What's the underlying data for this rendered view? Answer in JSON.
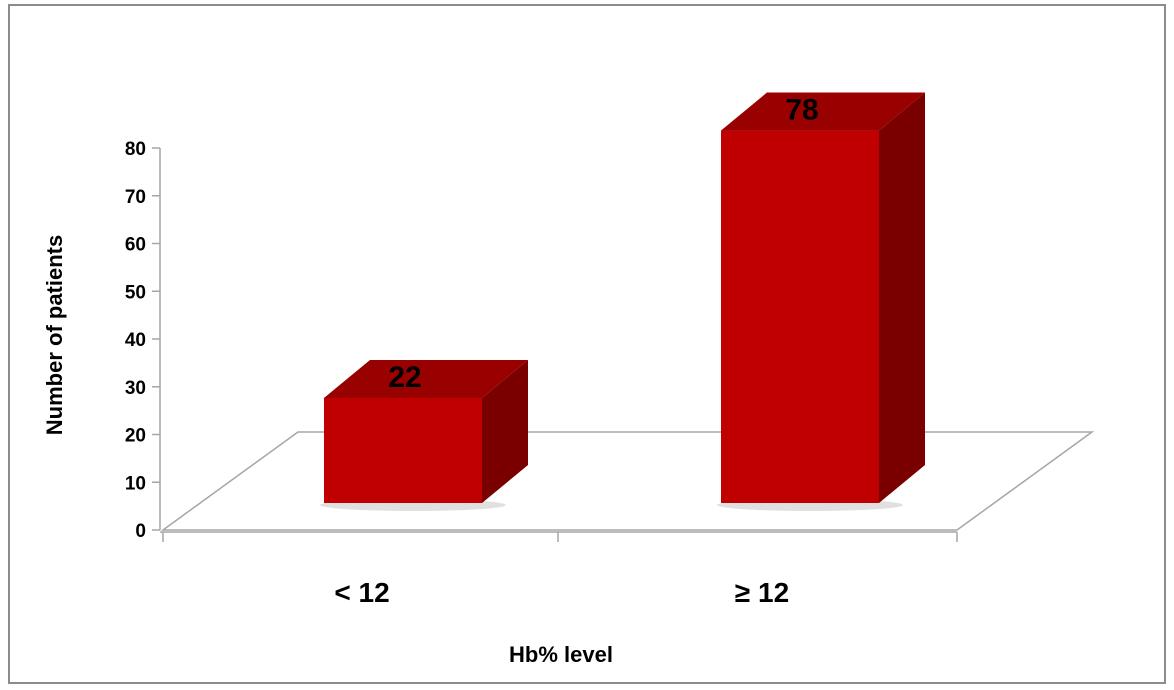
{
  "chart_data": {
    "type": "bar",
    "style": "3d",
    "categories": [
      "< 12",
      "≥ 12"
    ],
    "values": [
      22,
      78
    ],
    "data_labels": [
      "22",
      "78"
    ],
    "ylabel": "Number of patients",
    "xlabel": "Hb% level",
    "ylim": [
      0,
      80
    ],
    "yticks": [
      "0",
      "10",
      "20",
      "30",
      "40",
      "50",
      "60",
      "70",
      "80"
    ],
    "grid": false,
    "legend": "none",
    "colors": {
      "front": "#c00000",
      "top": "#990000",
      "side": "#7a0000",
      "floor": "#a6a6a6"
    }
  }
}
